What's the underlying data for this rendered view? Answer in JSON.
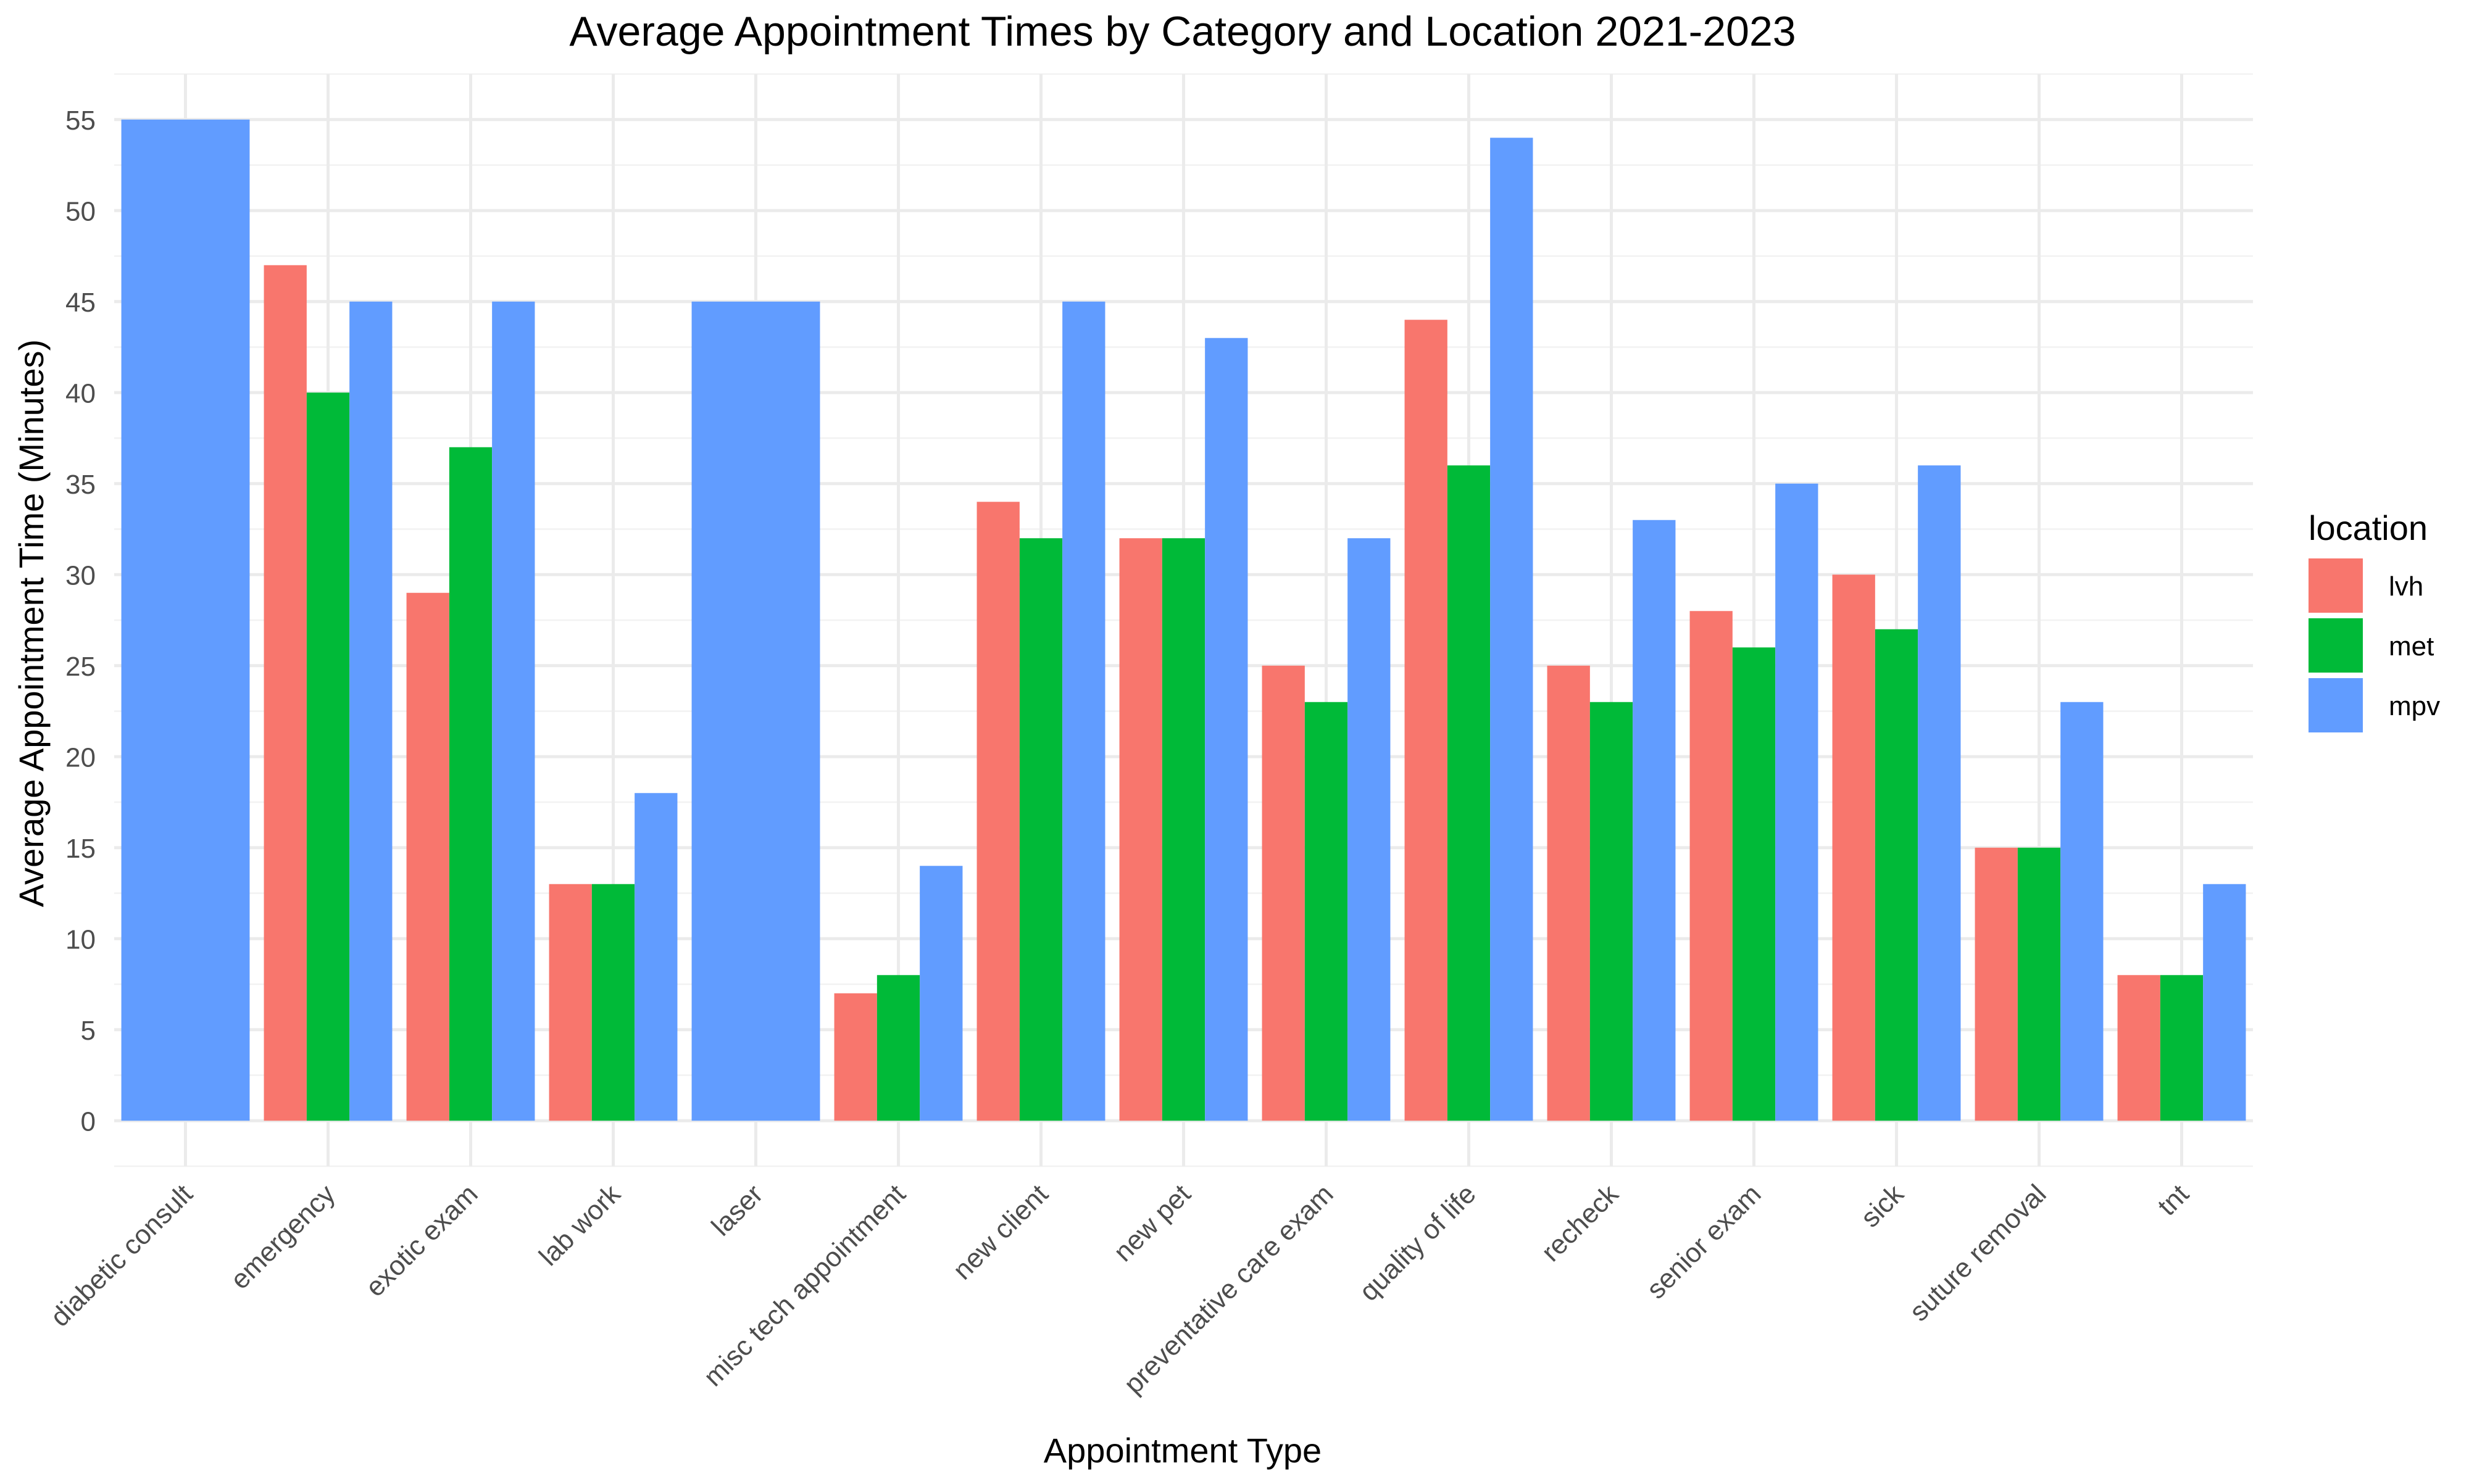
{
  "chart_data": {
    "type": "bar",
    "title": "Average Appointment Times by Category and Location 2021-2023",
    "xlabel": "Appointment Type",
    "ylabel": "Average Appointment Time (Minutes)",
    "ylim": [
      -2.5,
      57.5
    ],
    "yticks": [
      0,
      5,
      10,
      15,
      20,
      25,
      30,
      35,
      40,
      45,
      50,
      55
    ],
    "grid": true,
    "legend": {
      "title": "location",
      "position": "right"
    },
    "categories": [
      "diabetic consult",
      "emergency",
      "exotic exam",
      "lab work",
      "laser",
      "misc tech appointment",
      "new client",
      "new pet",
      "preventative care exam",
      "quality of life",
      "recheck",
      "senior exam",
      "sick",
      "suture removal",
      "tnt"
    ],
    "series": [
      {
        "name": "lvh",
        "color": "#F8766D",
        "values": [
          null,
          47,
          29,
          13,
          null,
          7,
          34,
          32,
          25,
          44,
          25,
          28,
          30,
          15,
          8
        ]
      },
      {
        "name": "met",
        "color": "#00BA38",
        "values": [
          null,
          40,
          37,
          13,
          null,
          8,
          32,
          32,
          23,
          36,
          23,
          26,
          27,
          15,
          8
        ]
      },
      {
        "name": "mpv",
        "color": "#619CFF",
        "values": [
          55,
          45,
          45,
          18,
          45,
          14,
          45,
          43,
          32,
          54,
          33,
          35,
          36,
          23,
          13
        ]
      }
    ]
  }
}
